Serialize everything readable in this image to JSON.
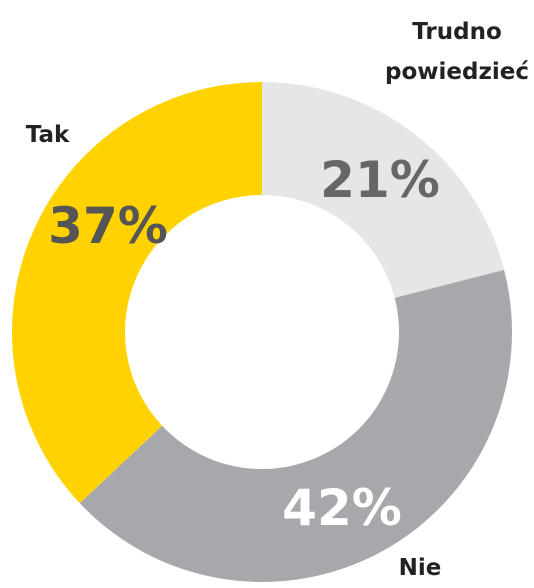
{
  "chart_data": {
    "type": "donut",
    "categories": [
      "Trudno powiedzieć",
      "Nie",
      "Tak"
    ],
    "values": [
      21,
      42,
      37
    ],
    "value_labels": [
      "21%",
      "42%",
      "37%"
    ],
    "colors": [
      "#e6e6e6",
      "#a7a8ab",
      "#ffd200"
    ]
  }
}
